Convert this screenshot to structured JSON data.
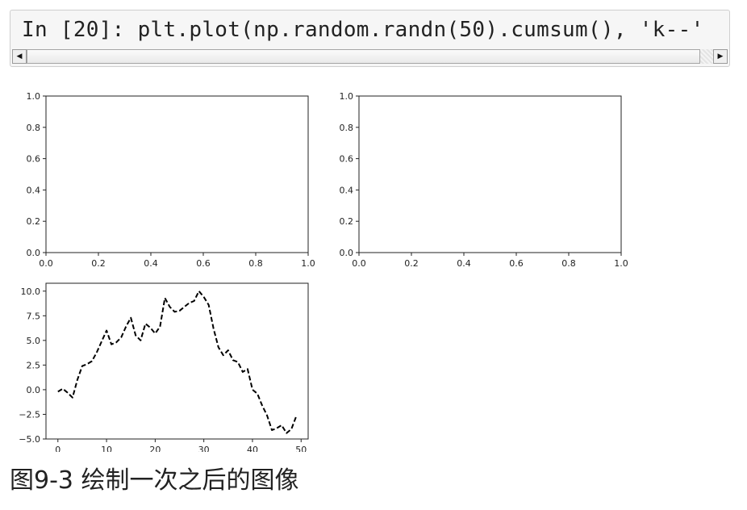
{
  "code_cell": {
    "text": "In [20]: plt.plot(np.random.randn(50).cumsum(), 'k--'",
    "scroll_left": "◀",
    "scroll_right": "▶"
  },
  "caption": "图9-3 绘制一次之后的图像",
  "chart_data": [
    {
      "type": "line",
      "title": "",
      "xlabel": "",
      "ylabel": "",
      "xlim": [
        0.0,
        1.0
      ],
      "ylim": [
        0.0,
        1.0
      ],
      "xticks": [
        "0.0",
        "0.2",
        "0.4",
        "0.6",
        "0.8",
        "1.0"
      ],
      "yticks": [
        "0.0",
        "0.2",
        "0.4",
        "0.6",
        "0.8",
        "1.0"
      ],
      "series": []
    },
    {
      "type": "line",
      "title": "",
      "xlabel": "",
      "ylabel": "",
      "xlim": [
        0.0,
        1.0
      ],
      "ylim": [
        0.0,
        1.0
      ],
      "xticks": [
        "0.0",
        "0.2",
        "0.4",
        "0.6",
        "0.8",
        "1.0"
      ],
      "yticks": [
        "0.0",
        "0.2",
        "0.4",
        "0.6",
        "0.8",
        "1.0"
      ],
      "series": []
    },
    {
      "type": "line",
      "title": "",
      "xlabel": "",
      "ylabel": "",
      "xlim": [
        -2.45,
        51.45
      ],
      "ylim": [
        -5.0,
        10.8
      ],
      "xticks": [
        "0",
        "10",
        "20",
        "30",
        "40",
        "50"
      ],
      "yticks": [
        "−5.0",
        "−2.5",
        "0.0",
        "2.5",
        "5.0",
        "7.5",
        "10.0"
      ],
      "grid": false,
      "series": [
        {
          "style": "k--",
          "color": "#000000",
          "x": [
            0,
            1,
            2,
            3,
            4,
            5,
            6,
            7,
            8,
            9,
            10,
            11,
            12,
            13,
            14,
            15,
            16,
            17,
            18,
            19,
            20,
            21,
            22,
            23,
            24,
            25,
            26,
            27,
            28,
            29,
            30,
            31,
            32,
            33,
            34,
            35,
            36,
            37,
            38,
            39,
            40,
            41,
            42,
            43,
            44,
            45,
            46,
            47,
            48,
            49
          ],
          "y": [
            -0.2,
            0.1,
            -0.3,
            -0.8,
            1.0,
            2.4,
            2.6,
            2.9,
            3.8,
            4.9,
            6.0,
            4.6,
            4.8,
            5.3,
            6.4,
            7.3,
            5.5,
            5.0,
            6.7,
            6.3,
            5.7,
            6.4,
            9.3,
            8.4,
            7.9,
            8.0,
            8.4,
            8.8,
            9.0,
            10.0,
            9.4,
            8.6,
            6.2,
            4.3,
            3.5,
            4.0,
            3.0,
            2.8,
            1.8,
            2.1,
            0.0,
            -0.4,
            -1.6,
            -2.6,
            -4.1,
            -3.9,
            -3.6,
            -4.4,
            -4.0,
            -2.7
          ]
        }
      ]
    }
  ]
}
